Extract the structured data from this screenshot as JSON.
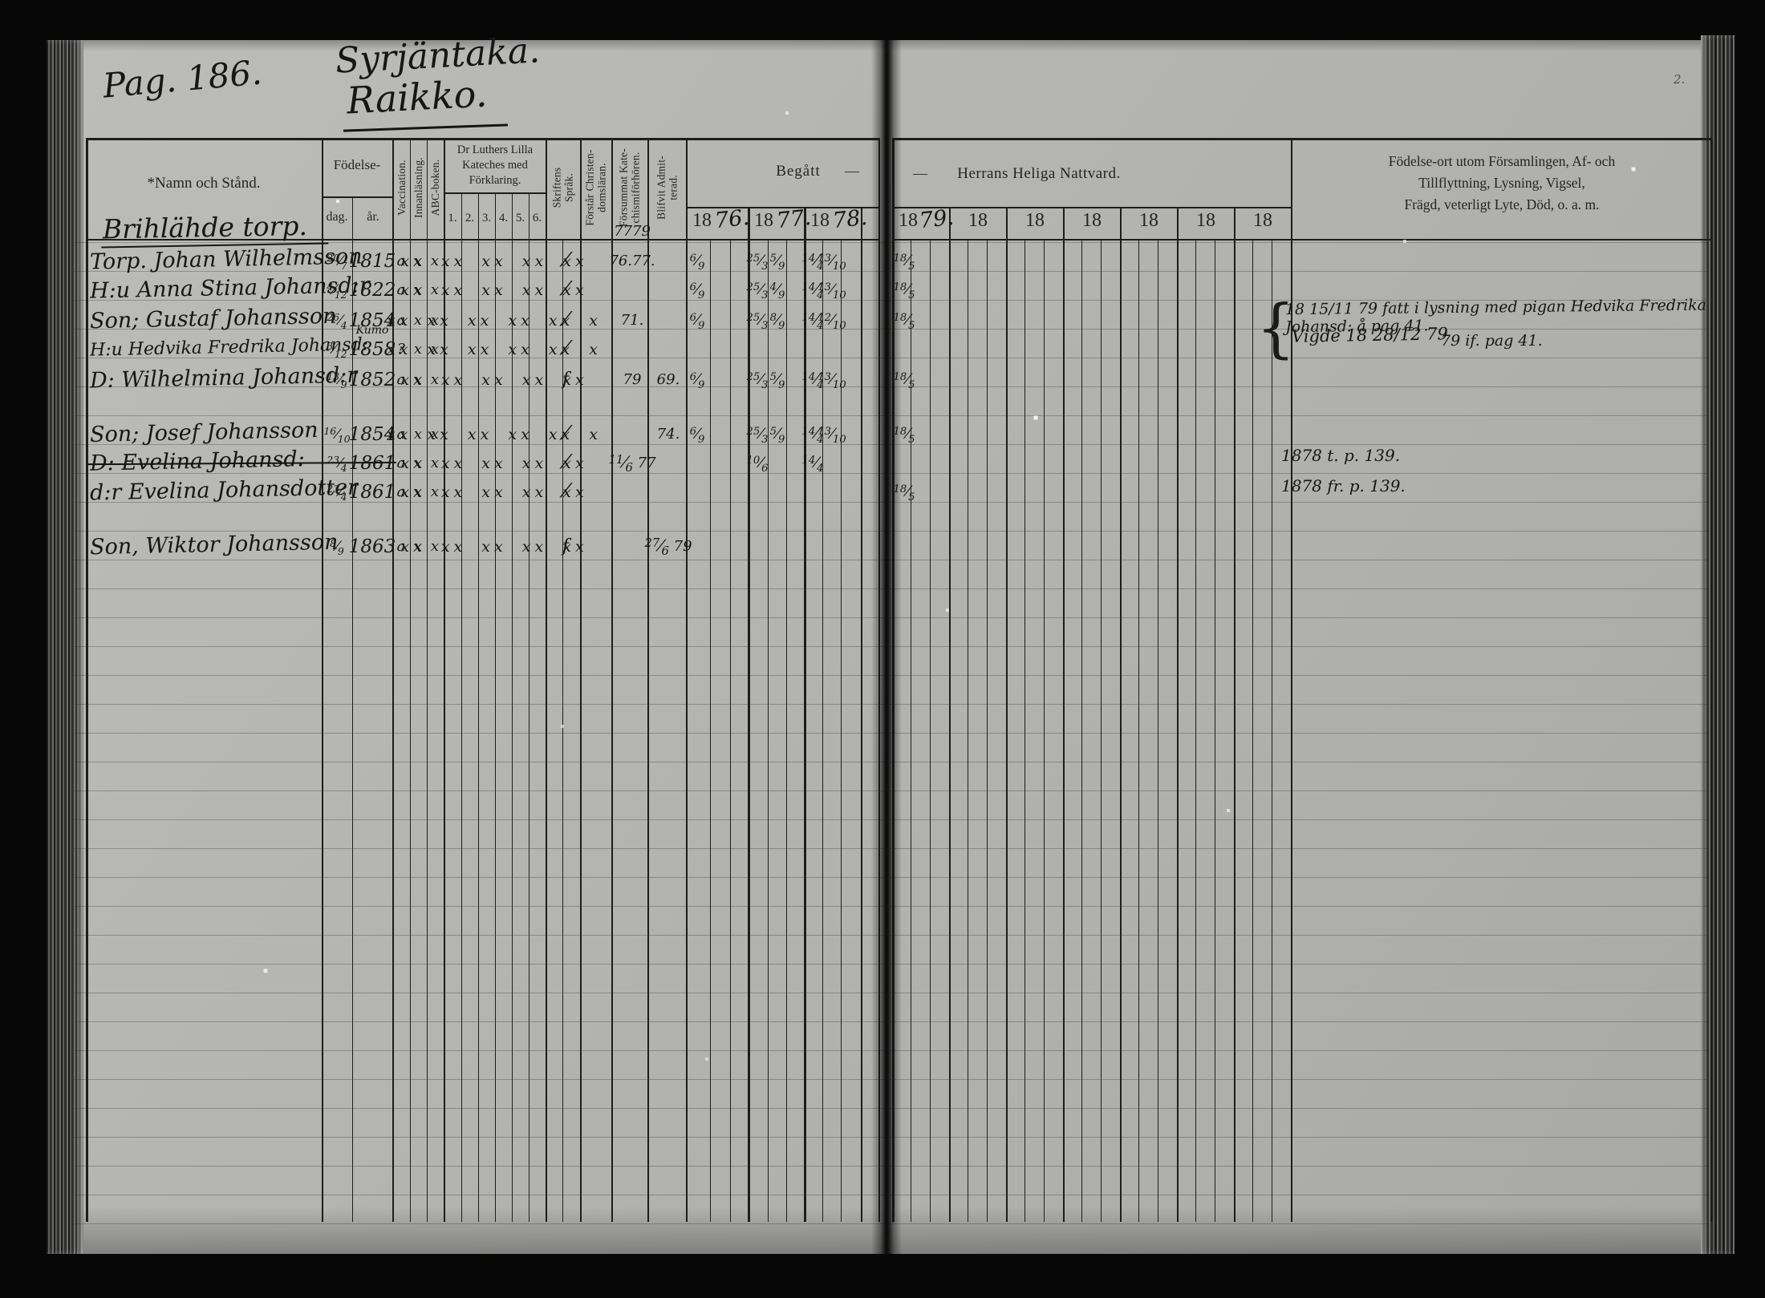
{
  "page": {
    "page_label": "Pag. 186.",
    "title1": "Syrjäntaka.",
    "title2": "Raikko.",
    "corner_mark": "2."
  },
  "header": {
    "namn": "*Namn och Stånd.",
    "fodelse": "Födelse-",
    "dag": "dag.",
    "ar": "år.",
    "vaccination": "Vaccination.",
    "innanlasning": "Innanläsning.",
    "abc": "ABC-boken.",
    "kateches": "Dr Luthers Lilla\nKateches med\nFörklaring.",
    "kateches_nums": [
      "1.",
      "2.",
      "3.",
      "4.",
      "5.",
      "6."
    ],
    "skriftens": "Skriftens\nSpråk.",
    "forstar": "Förstår Christen-\ndomsläran.",
    "forsummat": "Försummat Kate-\nchismiförhören.",
    "blifvit": "Blifvit Admit-\nterad.",
    "begatt": "Begått",
    "dash_left": "—",
    "dash_right": "—",
    "nattvard": "Herrans Heliga Nattvard.",
    "years_left": [
      {
        "printed": "18",
        "written": "76."
      },
      {
        "printed": "18",
        "written": "77."
      },
      {
        "printed": "18",
        "written": "78."
      }
    ],
    "years_right": [
      {
        "printed": "18",
        "written": "79."
      },
      {
        "printed": "18",
        "written": ""
      },
      {
        "printed": "18",
        "written": ""
      },
      {
        "printed": "18",
        "written": ""
      },
      {
        "printed": "18",
        "written": ""
      },
      {
        "printed": "18",
        "written": ""
      },
      {
        "printed": "18",
        "written": ""
      }
    ],
    "last_col": "Födelse-ort utom Församlingen, Af- och Tillflyttning, Lysning, Vigsel,\nFrägd, veterligt Lyte, Död, o. a. m."
  },
  "group": {
    "label": "Brihlähde torp.",
    "forsummat_note": "7779"
  },
  "rows": [
    {
      "name": "Torp. Johan Wilhelmsson",
      "dag": "20/7",
      "ar": "1815",
      "vacc": "a",
      "innan": "x",
      "abc": "x",
      "kat": "xx xx xx xx xx",
      "sprak": "/",
      "forsummat": "76.77.",
      "y76": "6/9",
      "y77a": "25/3",
      "y77b": "5/9",
      "y78a": "14/4",
      "y78b": "13/10",
      "y79": "18/5",
      "struck": false
    },
    {
      "name": "H:u Anna Stina Johansd:r",
      "dag": "4/12",
      "ar": "1822",
      "vacc": "a",
      "innan": "x",
      "abc": "x",
      "kat": "xx xx xx xx xx",
      "sprak": "/",
      "y76": "6/9",
      "y77a": "25/3",
      "y77b": "4/9",
      "y78a": "14/4",
      "y78b": "13/10",
      "y79": "18/5",
      "struck": false
    },
    {
      "name": "Son; Gustaf Johansson",
      "dag": "26/4",
      "ar": "1854",
      "vacc": "a",
      "innan": "x",
      "abc": "x",
      "kat": "xx xx xx xx xx x",
      "sprak": "/",
      "forsummat": "71.",
      "y76": "6/9",
      "y77a": "25/3",
      "y77b": "8/9",
      "y78a": "14/4",
      "y78b": "12/10",
      "y79": "18/5",
      "struck": false
    },
    {
      "name": "H:u Hedvika Fredrika Johansd:",
      "dag": "3/12",
      "ar": "1858",
      "ar_note": "Kumo",
      "vacc": "?",
      "innan": "x",
      "abc": "x",
      "kat": "xx xx xx xx xx x",
      "sprak": "/",
      "struck": false
    },
    {
      "name": "D: Wilhelmina Johansd:r",
      "dag": "13/9",
      "ar": "1852",
      "vacc": "a",
      "innan": "x",
      "abc": "x",
      "kat": "xx xx xx xx xx",
      "sprak": "f",
      "forsummat": "79",
      "admit": "69.",
      "y76": "6/9",
      "y77a": "25/3",
      "y77b": "5/9",
      "y78a": "14/4",
      "y78b": "13/10",
      "y79": "18/5",
      "struck": false
    },
    {
      "name": "Son; Josef Johansson",
      "dag": "16/10",
      "ar": "1854",
      "vacc": "a",
      "innan": "x",
      "abc": "x",
      "kat": "xx xx xx xx xx x",
      "sprak": "/",
      "admit": "74.",
      "y76": "6/9",
      "y77a": "25/3",
      "y77b": "5/9",
      "y78a": "14/4",
      "y78b": "13/10",
      "y79": "18/5",
      "struck": false
    },
    {
      "name": "D: Evelina Johansd:",
      "dag": "23/4",
      "ar": "1861",
      "vacc": "a",
      "innan": "x",
      "abc": "x",
      "kat": "xx xx xx xx xx",
      "sprak": "/",
      "forsummat": "11/6 77",
      "y77a": "10/6",
      "y78a": "14/4",
      "struck": true
    },
    {
      "name": "d:r Evelina Johansdotter",
      "dag": "23/4",
      "ar": "1861",
      "vacc": "a",
      "innan": "x",
      "abc": "x",
      "kat": "xx xx xx xx xx",
      "sprak": "/",
      "y79": "18/5",
      "struck": false
    },
    {
      "name": "Son, Wiktor Johansson",
      "dag": "8/9",
      "ar": "1863",
      "vacc": "a",
      "innan": "x",
      "abc": "x",
      "kat": "xx xx xx xx xx",
      "sprak": "f",
      "admit": "27/6 79",
      "struck": false
    }
  ],
  "annotations": {
    "brace": "{",
    "lysning1": "18 15/11 79 fatt i lysning med pigan Hedvika Fredrika Johansd: å pag 41.",
    "lysning2": "Vigde 18 28/12 79",
    "lysning3": "79 if. pag 41.",
    "transfer_out": "1878 t. p. 139.",
    "transfer_in": "1878 fr. p. 139."
  }
}
